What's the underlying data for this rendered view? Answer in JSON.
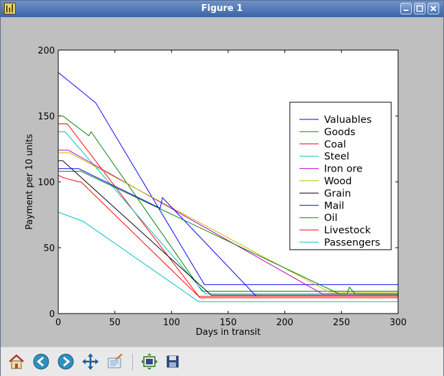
{
  "window": {
    "title": "Figure 1"
  },
  "toolbar": {
    "buttons": [
      "home-icon",
      "back-icon",
      "forward-icon",
      "pan-icon",
      "configure-subplots-icon",
      "zoom-to-rect-icon",
      "save-icon"
    ]
  },
  "chart_data": {
    "type": "line",
    "title": "",
    "xlabel": "Days in transit",
    "ylabel": "Payment per 10 units",
    "xlim": [
      0,
      300
    ],
    "ylim": [
      0,
      200
    ],
    "xticks": [
      "0",
      "50",
      "100",
      "150",
      "200",
      "250",
      "300"
    ],
    "yticks": [
      "0",
      "50",
      "100",
      "150",
      "200"
    ],
    "grid": false,
    "legend": "center-right",
    "series": [
      {
        "name": "Valuables",
        "color": "#0000ff",
        "x": [
          0,
          33,
          129,
          300
        ],
        "y": [
          183,
          160,
          22,
          22
        ]
      },
      {
        "name": "Goods",
        "color": "#008000",
        "x": [
          0,
          4,
          27,
          29,
          127,
          300
        ],
        "y": [
          150,
          150,
          135,
          138,
          17,
          17
        ]
      },
      {
        "name": "Coal",
        "color": "#ff0000",
        "x": [
          0,
          8,
          125,
          300
        ],
        "y": [
          144,
          144,
          12,
          12
        ]
      },
      {
        "name": "Steel",
        "color": "#00bfbf",
        "x": [
          0,
          6,
          130,
          300
        ],
        "y": [
          138,
          138,
          15,
          15
        ]
      },
      {
        "name": "Iron ore",
        "color": "#bf00bf",
        "x": [
          0,
          9,
          233,
          300
        ],
        "y": [
          124,
          124,
          15,
          15
        ]
      },
      {
        "name": "Wood",
        "color": "#bfbf00",
        "x": [
          0,
          10,
          240,
          300
        ],
        "y": [
          122,
          122,
          16,
          16
        ]
      },
      {
        "name": "Grain",
        "color": "#000000",
        "x": [
          0,
          4,
          135,
          300
        ],
        "y": [
          116,
          116,
          14,
          14
        ]
      },
      {
        "name": "Mail",
        "color": "#0000ff",
        "x": [
          0,
          18,
          90,
          92,
          175,
          300
        ],
        "y": [
          110,
          110,
          80,
          88,
          13,
          13
        ]
      },
      {
        "name": "Oil",
        "color": "#008000",
        "x": [
          0,
          20,
          248,
          255,
          257,
          262,
          300
        ],
        "y": [
          108,
          108,
          15,
          15,
          20,
          15,
          15
        ]
      },
      {
        "name": "Livestock",
        "color": "#ff0000",
        "x": [
          0,
          5,
          18,
          20,
          124,
          300
        ],
        "y": [
          105,
          103,
          100,
          100,
          13,
          13
        ]
      },
      {
        "name": "Passengers",
        "color": "#00bfbf",
        "x": [
          0,
          22,
          124,
          300
        ],
        "y": [
          77,
          70,
          9,
          9
        ]
      }
    ]
  }
}
